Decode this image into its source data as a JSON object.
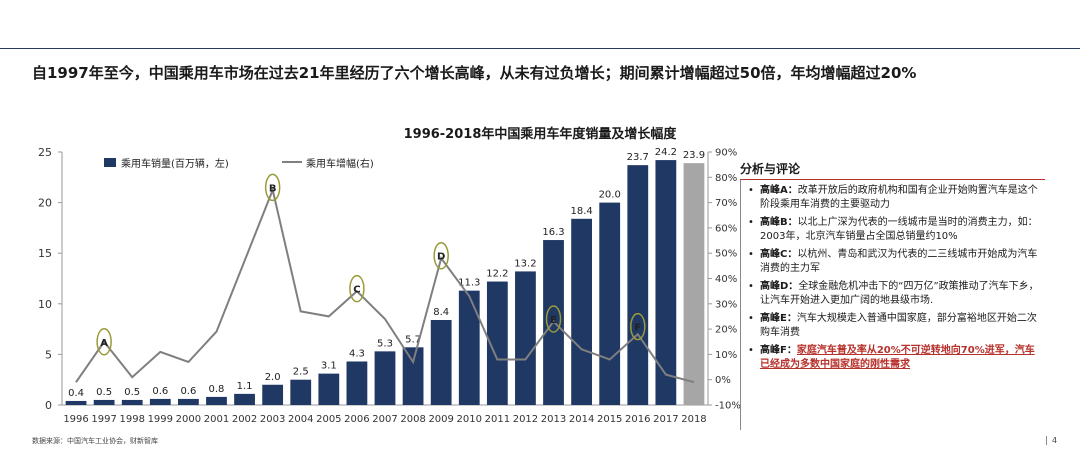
{
  "headline": "自1997年至今，中国乘用车市场在过去21年里经历了六个增长高峰，从未有过负增长；期间累计增幅超过50倍，年均增幅超过20%",
  "chart_data": {
    "type": "bar",
    "title": "1996-2018年中国乘用车年度销量及增长幅度",
    "categories": [
      "1996",
      "1997",
      "1998",
      "1999",
      "2000",
      "2001",
      "2002",
      "2003",
      "2004",
      "2005",
      "2006",
      "2007",
      "2008",
      "2009",
      "2010",
      "2011",
      "2012",
      "2013",
      "2014",
      "2015",
      "2016",
      "2017",
      "2018"
    ],
    "series": [
      {
        "name": "乘用车销量(百万辆，左)",
        "type": "bar",
        "axis": "left",
        "values": [
          0.4,
          0.5,
          0.5,
          0.6,
          0.6,
          0.8,
          1.1,
          2.0,
          2.5,
          3.1,
          4.3,
          5.3,
          5.7,
          8.4,
          11.3,
          12.2,
          13.2,
          16.3,
          18.4,
          20.0,
          23.7,
          24.2,
          23.9
        ],
        "labels": [
          "0.4",
          "0.5",
          "0.5",
          "0.6",
          "0.6",
          "0.8",
          "1.1",
          "2.0",
          "2.5",
          "3.1",
          "4.3",
          "5.3",
          "5.7",
          "8.4",
          "11.3",
          "12.2",
          "13.2",
          "16.3",
          "18.4",
          "20.0",
          "23.7",
          "24.2",
          "23.9"
        ]
      },
      {
        "name": "乘用车增幅(右)",
        "type": "line",
        "axis": "right",
        "values": [
          -0.01,
          0.15,
          0.01,
          0.11,
          0.07,
          0.19,
          0.47,
          0.75,
          0.27,
          0.25,
          0.35,
          0.24,
          0.07,
          0.48,
          0.33,
          0.08,
          0.08,
          0.23,
          0.12,
          0.08,
          0.18,
          0.02,
          -0.01
        ]
      }
    ],
    "ylim_left": [
      0,
      25
    ],
    "yticks_left": [
      "0",
      "5",
      "10",
      "15",
      "20",
      "25"
    ],
    "ylim_right": [
      -0.1,
      0.9
    ],
    "yticks_right": [
      "-10%",
      "0%",
      "10%",
      "20%",
      "30%",
      "40%",
      "50%",
      "60%",
      "70%",
      "80%",
      "90%"
    ],
    "bar_color": "#1f3864",
    "forecast_color": "#a6a6a6",
    "line_color": "#7f7f7f",
    "marker_color": "#9a9a3a",
    "forecast_category": "2018",
    "peak_markers": [
      {
        "label": "A",
        "year": "1997",
        "value": 0.15
      },
      {
        "label": "B",
        "year": "2003",
        "value": 0.76
      },
      {
        "label": "C",
        "year": "2006",
        "value": 0.36
      },
      {
        "label": "D",
        "year": "2009",
        "value": 0.49
      },
      {
        "label": "E",
        "year": "2013",
        "value": 0.24
      },
      {
        "label": "F",
        "year": "2016",
        "value": 0.21
      }
    ],
    "legend_position": "top-left"
  },
  "panel": {
    "title": "分析与评论",
    "items": [
      {
        "label": "高峰A：",
        "text": "改革开放后的政府机构和国有企业开始购置汽车是这个阶段乘用车消费的主要驱动力"
      },
      {
        "label": "高峰B：",
        "text": "以北上广深为代表的一线城市是当时的消费主力，如：2003年，北京汽车销量占全国总销量约10%"
      },
      {
        "label": "高峰C：",
        "text": "以杭州、青岛和武汉为代表的二三线城市开始成为汽车消费的主力军"
      },
      {
        "label": "高峰D：",
        "text": "全球金融危机冲击下的“四万亿”政策推动了汽车下乡，让汽车开始进入更加广阔的地县级市场."
      },
      {
        "label": "高峰E：",
        "text": "汽车大规模走入普通中国家庭，部分富裕地区开始二次购车消费"
      },
      {
        "label": "高峰F：",
        "text": "家庭汽车普及率从20%不可逆转地向70%进军，汽车已经成为多数中国家庭的刚性需求"
      }
    ]
  },
  "source": "数据来源：中国汽车工业协会，财新智库",
  "page_number": "4"
}
